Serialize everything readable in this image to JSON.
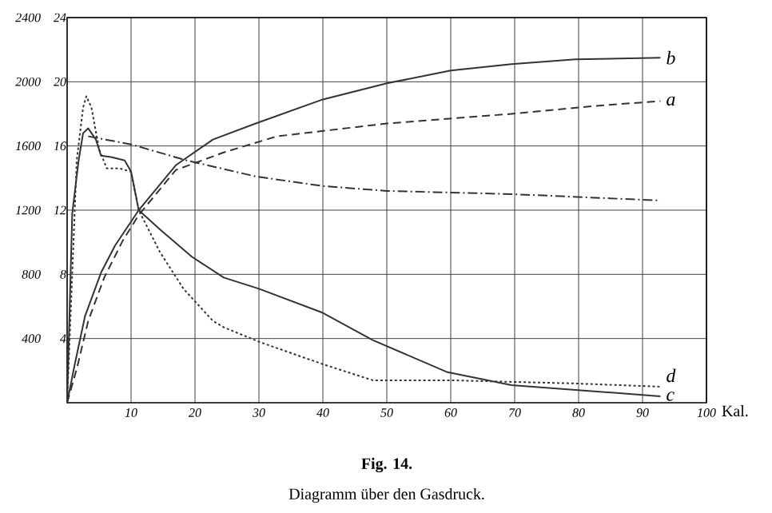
{
  "chart_data": {
    "type": "line",
    "title": "Fig. 14.",
    "subtitle": "Diagramm über den Gasdruck.",
    "xlabel": "Kal.",
    "xlim": [
      0,
      100
    ],
    "xticks": [
      10,
      20,
      30,
      40,
      50,
      60,
      70,
      80,
      90,
      100
    ],
    "ylim": [
      0,
      2400
    ],
    "yticks": [
      400,
      800,
      1200,
      1600,
      2000,
      2400
    ],
    "y2lim": [
      0,
      24
    ],
    "y2ticks": [
      4,
      8,
      12,
      16,
      20,
      24
    ],
    "grid": true,
    "series": [
      {
        "name": "b",
        "color": "#333333",
        "line_style": "solid",
        "x": [
          0,
          1.2,
          2.8,
          5.3,
          7.5,
          11.2,
          17,
          22.8,
          29.5,
          40,
          50,
          60,
          69.5,
          79.5,
          92.8
        ],
        "values": [
          0,
          240,
          540,
          810,
          980,
          1200,
          1480,
          1640,
          1740,
          1890,
          1990,
          2070,
          2110,
          2140,
          2150
        ]
      },
      {
        "name": "a",
        "color": "#333333",
        "line_style": "dashed",
        "x": [
          0,
          1.5,
          3.3,
          5.8,
          8.7,
          11.2,
          17,
          24.5,
          32.8,
          50,
          69.5,
          82.8,
          92.8
        ],
        "values": [
          0,
          210,
          510,
          780,
          1010,
          1170,
          1450,
          1560,
          1660,
          1740,
          1800,
          1850,
          1880
        ]
      },
      {
        "color": "#333333",
        "line_style": "dashdot",
        "x": [
          3.3,
          10,
          18.7,
          29.5,
          40,
          50,
          69.5,
          92.8
        ],
        "values": [
          1660,
          1610,
          1510,
          1410,
          1350,
          1320,
          1300,
          1260
        ]
      },
      {
        "name": "c",
        "color": "#333333",
        "line_style": "solid",
        "x": [
          0,
          0.8,
          1.8,
          2.5,
          3.3,
          4.5,
          5.3,
          7,
          9,
          10,
          11.2,
          14.5,
          19.5,
          24.5,
          30,
          40,
          47.8,
          59.5,
          69.5,
          79.5,
          92.8
        ],
        "values": [
          0,
          1180,
          1510,
          1680,
          1710,
          1640,
          1540,
          1530,
          1510,
          1440,
          1200,
          1080,
          910,
          780,
          710,
          560,
          390,
          190,
          110,
          80,
          40
        ]
      },
      {
        "name": "d",
        "color": "#333333",
        "line_style": "dotted",
        "x": [
          0,
          1.5,
          2.5,
          3,
          3.8,
          5,
          6.2,
          8.2,
          10,
          11.2,
          14.5,
          18.2,
          22.8,
          24.5,
          30,
          40,
          47.8,
          60,
          69.5,
          79.5,
          92.8
        ],
        "values": [
          0,
          1510,
          1840,
          1910,
          1840,
          1580,
          1460,
          1460,
          1440,
          1200,
          940,
          710,
          510,
          470,
          380,
          240,
          140,
          140,
          130,
          120,
          100
        ]
      }
    ]
  }
}
